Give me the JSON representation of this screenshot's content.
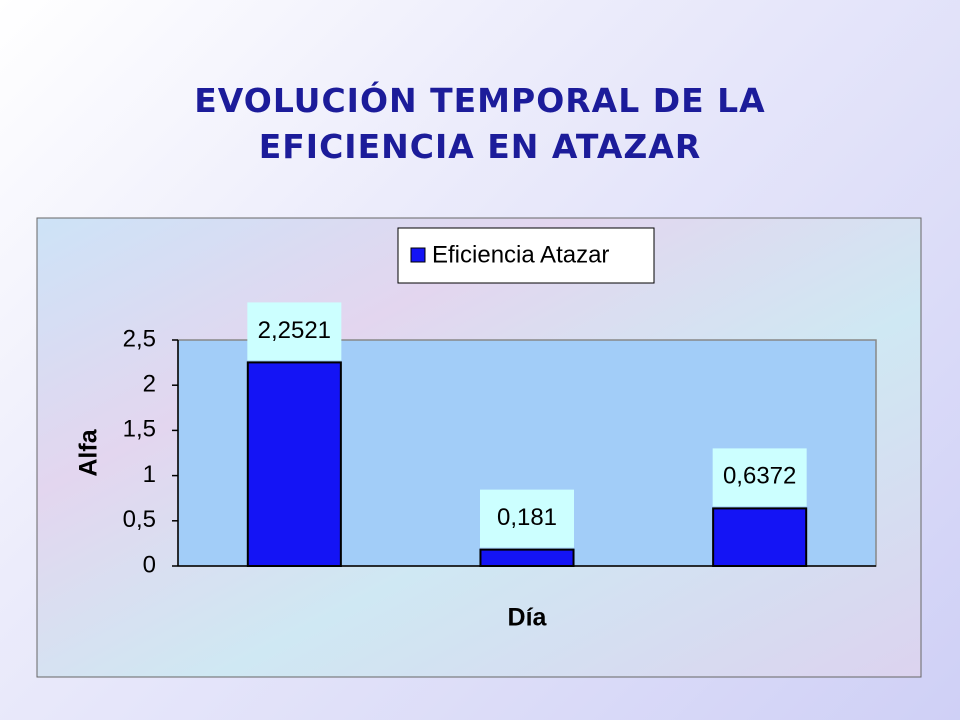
{
  "chart_data": {
    "type": "bar",
    "title": "EVOLUCIÓN TEMPORAL DE LA EFICIENCIA EN ATAZAR",
    "x_label": "Día",
    "y_label": "Alfa",
    "categories": [
      null,
      null,
      null
    ],
    "series": [
      {
        "name": "Eficiencia Atazar",
        "color": "#1414f5",
        "values": [
          2.2521,
          0.181,
          0.6372
        ],
        "value_labels": [
          "2,2521",
          "0,181",
          "0,6372"
        ]
      }
    ],
    "ylim": [
      0,
      2.5
    ],
    "yticks": [
      0,
      {
        "value": 0.5,
        "label": "0,5"
      },
      1,
      {
        "value": 1.5,
        "label": "1,5"
      },
      2,
      {
        "value": 2.5,
        "label": "2,5"
      }
    ],
    "grid": false,
    "legend": "top"
  }
}
